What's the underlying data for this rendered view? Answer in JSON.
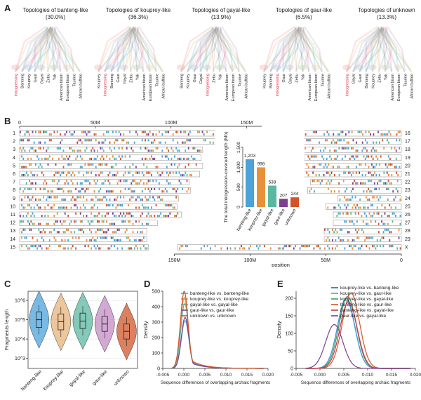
{
  "panels": {
    "a": "A",
    "b": "B",
    "c": "C",
    "d": "D",
    "e": "E"
  },
  "panel_a": {
    "topologies": [
      {
        "title": "Topologies of banteng-like",
        "pct": "(30.0%)",
        "taxa": [
          "Introgressing",
          "Banteng",
          "Kouprey",
          "Gaur",
          "Gayal",
          "Zebu",
          "Yak",
          "American bison",
          "European bison",
          "Taurine",
          "African buffalo"
        ]
      },
      {
        "title": "Topologies of kouprey-like",
        "pct": "(36.3%)",
        "taxa": [
          "Kouprey",
          "Introgressing",
          "Banteng",
          "Gaur",
          "Gayal",
          "Zebu",
          "Yak",
          "American bison",
          "European bison",
          "Taurine",
          "African buffalo"
        ]
      },
      {
        "title": "Topologies of gayal-like",
        "pct": "(13.9%)",
        "taxa": [
          "Banteng",
          "Kouprey",
          "Gaur",
          "Gayal",
          "Introgressing",
          "Zebu",
          "Yak",
          "American bison",
          "European bison",
          "Taurine",
          "African buffalo"
        ]
      },
      {
        "title": "Topologies of gaur-like",
        "pct": "(6.5%)",
        "taxa": [
          "Kouprey",
          "Banteng",
          "Introgressing",
          "Gaur",
          "Gayal",
          "Zebu",
          "Yak",
          "American bison",
          "European bison",
          "Taurine",
          "African buffalo"
        ]
      },
      {
        "title": "Topologies of unknown",
        "pct": "(13.3%)",
        "taxa": [
          "Introgressing",
          "Gayal",
          "Gaur",
          "Banteng",
          "Kouprey",
          "Zebu",
          "Yak",
          "American bison",
          "European bison",
          "Taurine",
          "African buffalo"
        ]
      }
    ]
  },
  "panel_b": {
    "top_ticks": [
      "0",
      "50M",
      "100M",
      "150M"
    ],
    "bottom_ticks": [
      "150M",
      "100M",
      "50M",
      "0"
    ],
    "xlabel": "position",
    "left_chroms": [
      "1",
      "2",
      "3",
      "4",
      "5",
      "6",
      "7",
      "8",
      "9",
      "10",
      "11",
      "12",
      "13",
      "14",
      "15"
    ],
    "right_chroms": [
      "16",
      "17",
      "18",
      "19",
      "20",
      "21",
      "22",
      "23",
      "24",
      "25",
      "26",
      "27",
      "28",
      "29",
      "X"
    ]
  },
  "chart_data": [
    {
      "type": "bar",
      "title": "",
      "ylabel": "The total introgression-covered length (Mb)",
      "categories": [
        "banteng-like",
        "kouprey-like",
        "gayal-like",
        "gaur-like",
        "unknown"
      ],
      "values": [
        1203,
        998,
        538,
        207,
        244
      ],
      "value_labels": [
        "1,203",
        "998",
        "538",
        "207",
        "244"
      ],
      "colors": [
        "#4ba3d9",
        "#e8913a",
        "#5ab8a0",
        "#7d3f8e",
        "#d2552a"
      ],
      "yticks": [
        "0",
        "500",
        "1,000",
        "1,500"
      ],
      "ylim": [
        0,
        1500
      ]
    },
    {
      "type": "violin",
      "ylabel": "Fragments length",
      "categories": [
        "banteng-like",
        "kouprey-like",
        "gayal-like",
        "gaur-like",
        "unknown"
      ],
      "yticks": [
        "10^3",
        "10^4",
        "10^5",
        "10^6"
      ],
      "y_log": true,
      "ylim": [
        300,
        3000000
      ],
      "medians": [
        100000,
        80000,
        85000,
        60000,
        25000
      ],
      "q1": [
        40000,
        30000,
        35000,
        25000,
        10000
      ],
      "q3": [
        250000,
        200000,
        220000,
        150000,
        60000
      ],
      "colors": [
        "#4ba3d9",
        "#e8b37a",
        "#5ab8a0",
        "#c48bc4",
        "#d2552a"
      ]
    },
    {
      "type": "line",
      "ylabel": "Density",
      "xlabel": "Sequence differences of overlapping archaic fragments",
      "xticks": [
        "-0.005",
        "0.000",
        "0.005",
        "0.010",
        "0.015",
        "0.020"
      ],
      "yticks": [
        "0",
        "100",
        "200",
        "300",
        "400",
        "500"
      ],
      "xlim": [
        -0.005,
        0.02
      ],
      "ylim": [
        0,
        500
      ],
      "series": [
        {
          "name": "banteng-like vs. banteng-like",
          "color": "#4ba3d9",
          "peak": 310,
          "mu": 0.0003
        },
        {
          "name": "kouprey-like vs. kouprey-like",
          "color": "#e8913a",
          "peak": 460,
          "mu": 0.0001
        },
        {
          "name": "gayal-like vs. gayal-like",
          "color": "#5ab8a0",
          "peak": 420,
          "mu": 0.0002
        },
        {
          "name": "gaur-like vs. gaur-like",
          "color": "#7d3f8e",
          "peak": 330,
          "mu": 0.0003
        },
        {
          "name": "unknown vs. unknown",
          "color": "#d2552a",
          "peak": 500,
          "mu": 0.0001
        }
      ]
    },
    {
      "type": "line",
      "ylabel": "Density",
      "xlabel": "Sequence differences of overlapping archaic fragments",
      "xticks": [
        "-0.005",
        "0.000",
        "0.005",
        "0.010",
        "0.015",
        "0.020"
      ],
      "yticks": [
        "0",
        "50",
        "100",
        "150",
        "200"
      ],
      "xlim": [
        -0.005,
        0.02
      ],
      "ylim": [
        0,
        220
      ],
      "series": [
        {
          "name": "kouprey-like vs. banteng-like",
          "color": "#2b5fa8",
          "peak": 200,
          "mu": 0.0055
        },
        {
          "name": "kouprey-like vs. gaur-like",
          "color": "#4ba3d9",
          "peak": 195,
          "mu": 0.0055
        },
        {
          "name": "kouprey-like vs. gayal-like",
          "color": "#3aa05a",
          "peak": 205,
          "mu": 0.0058
        },
        {
          "name": "banteng-like vs. gaur-like",
          "color": "#d2552a",
          "peak": 215,
          "mu": 0.0065
        },
        {
          "name": "banteng-like vs. gayal-like",
          "color": "#c9334f",
          "peak": 190,
          "mu": 0.006
        },
        {
          "name": "gaur-like vs. gayal-like",
          "color": "#7d3f8e",
          "peak": 125,
          "mu": 0.003
        }
      ]
    }
  ]
}
